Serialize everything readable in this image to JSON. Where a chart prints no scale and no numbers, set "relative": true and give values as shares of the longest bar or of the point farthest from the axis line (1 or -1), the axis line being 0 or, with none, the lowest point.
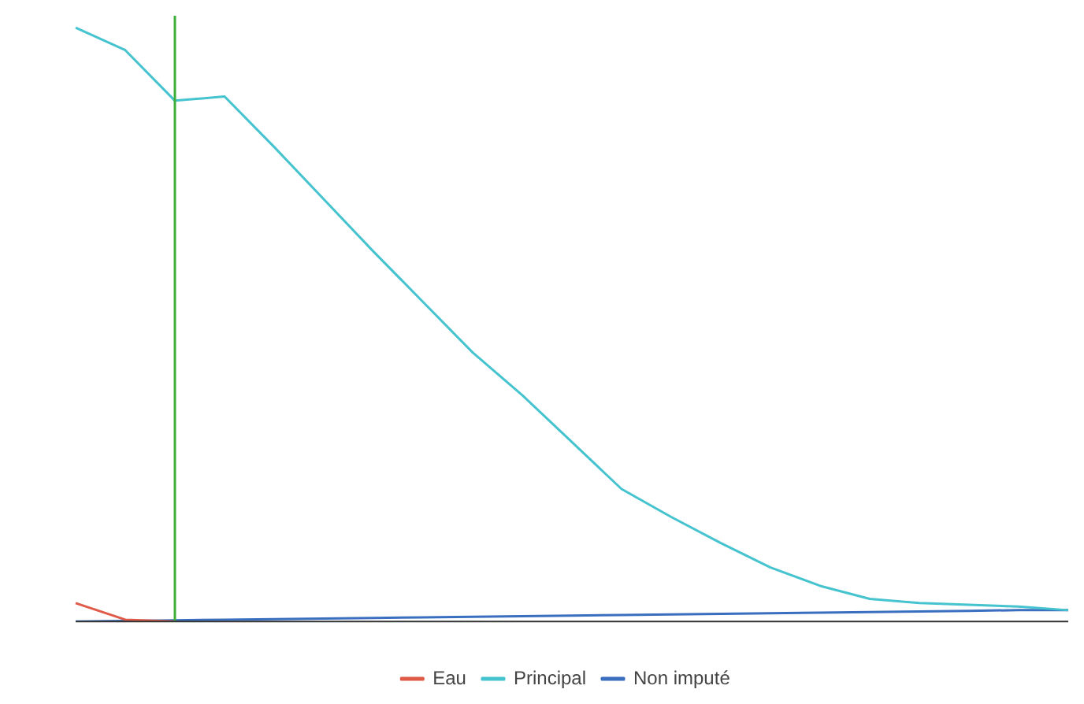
{
  "chart_data": {
    "type": "line",
    "relative": true,
    "categories": [
      null,
      null,
      null,
      null,
      null,
      null,
      null,
      null,
      null,
      null,
      null,
      null,
      null,
      null,
      null,
      null,
      null,
      null,
      null,
      null,
      null
    ],
    "series": [
      {
        "name": "Eau",
        "color": "#e05a48",
        "values": [
          0.031,
          0.003,
          0,
          null,
          null,
          null,
          null,
          null,
          null,
          null,
          null,
          null,
          null,
          null,
          null,
          null,
          null,
          null,
          null,
          null,
          null
        ]
      },
      {
        "name": "Principal",
        "color": "#45c3cf",
        "values": [
          1.0,
          0.962,
          0.877,
          0.884,
          0.799,
          0.711,
          0.623,
          0.538,
          0.453,
          0.381,
          0.302,
          0.223,
          0.176,
          0.132,
          0.091,
          0.06,
          0.038,
          0.031,
          0.028,
          0.025,
          0.019
        ]
      },
      {
        "name": "Non imputé",
        "color": "#3a6fc0",
        "values": [
          0,
          0.001,
          0.002,
          0.003,
          0.004,
          0.005,
          0.006,
          0.007,
          0.008,
          0.009,
          0.01,
          0.011,
          0.012,
          0.013,
          0.014,
          0.015,
          0.016,
          0.017,
          0.018,
          0.019,
          0.019
        ]
      }
    ],
    "legend": "bottom",
    "grid": false,
    "marker": "none",
    "line_style": "solid"
  }
}
